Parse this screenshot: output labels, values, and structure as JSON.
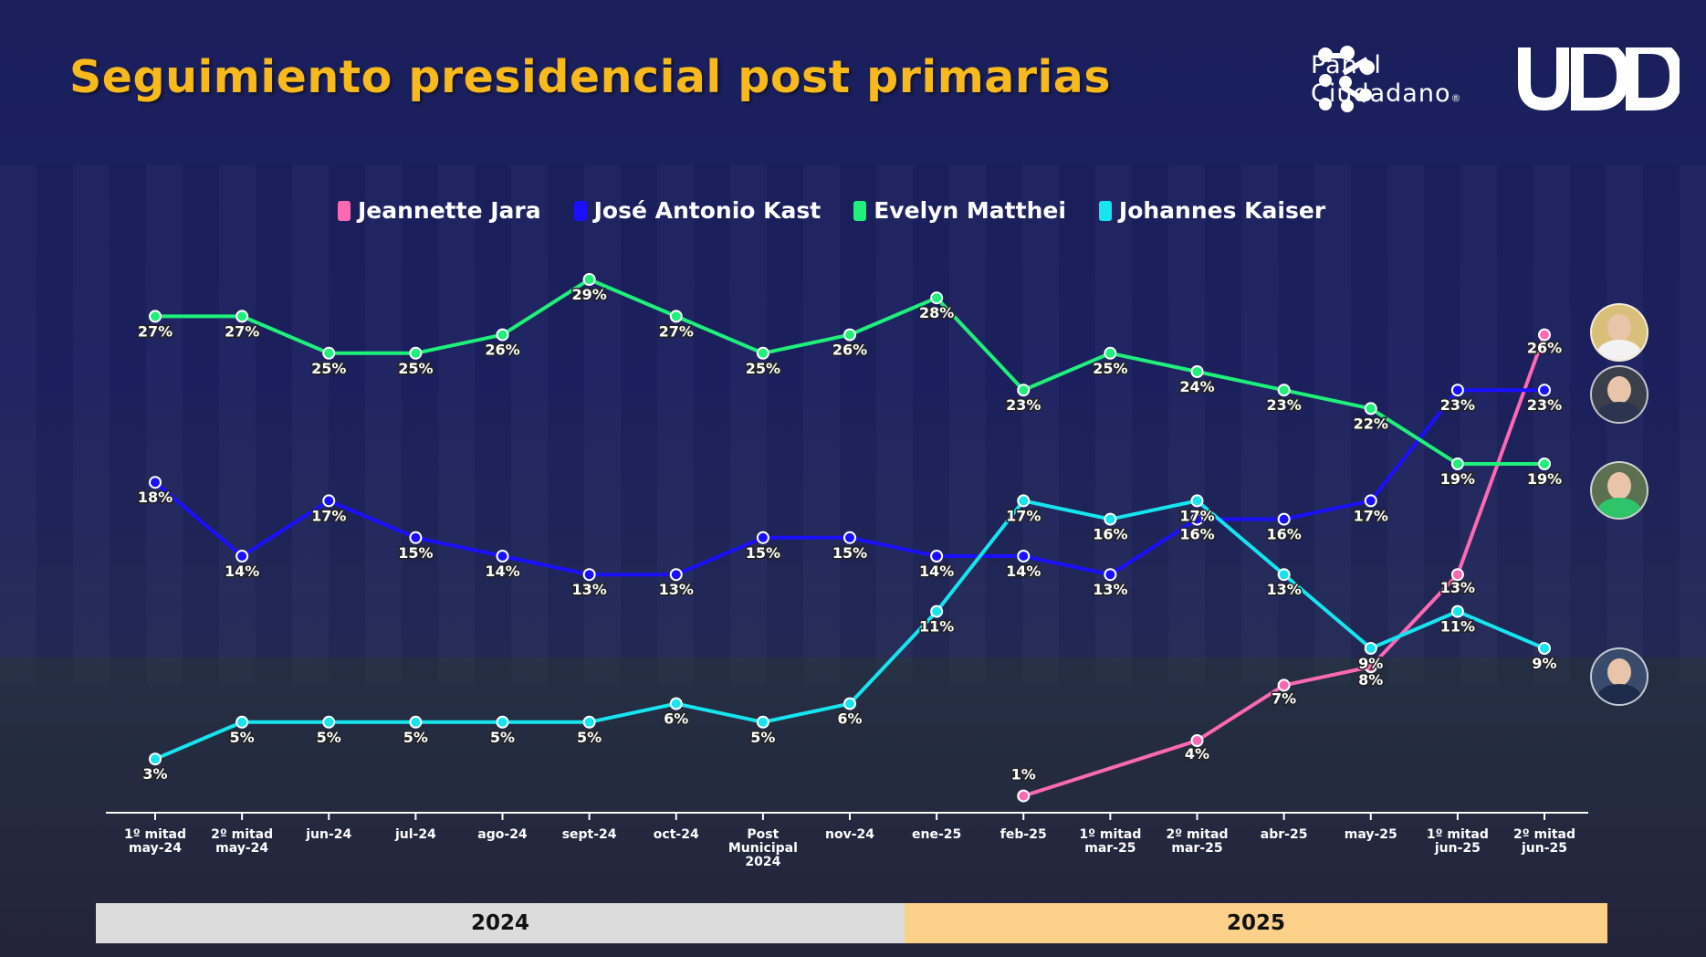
{
  "title": "Seguimiento presidencial post primarias",
  "logos": {
    "panel_line1": "Panel",
    "panel_line2": "Ciudadano",
    "panel_reg": "®",
    "udd": "UDD"
  },
  "colors": {
    "title": "#f7b91c",
    "jara": "#ff69b4",
    "kast": "#1a10ff",
    "matthei": "#1ef07a",
    "kaiser": "#16e5f0",
    "year_2024": "#dcdcdc",
    "year_2025": "#fbd089"
  },
  "years": {
    "y2024": "2024",
    "y2025": "2025"
  },
  "chart_data": {
    "type": "line",
    "categories": [
      [
        "1º mitad",
        "may-24"
      ],
      [
        "2º mitad",
        "may-24"
      ],
      [
        "jun-24"
      ],
      [
        "jul-24"
      ],
      [
        "ago-24"
      ],
      [
        "sept-24"
      ],
      [
        "oct-24"
      ],
      [
        "Post",
        "Municipal",
        "2024"
      ],
      [
        "nov-24"
      ],
      [
        "ene-25"
      ],
      [
        "feb-25"
      ],
      [
        "1º mitad",
        "mar-25"
      ],
      [
        "2º mitad",
        "mar-25"
      ],
      [
        "abr-25"
      ],
      [
        "may-25"
      ],
      [
        "1º mitad",
        "jun-25"
      ],
      [
        "2º mitad",
        "jun-25"
      ]
    ],
    "ylim": [
      0,
      32
    ],
    "grid": false,
    "legend_position": "top-center",
    "series": [
      {
        "name": "Jeannette Jara",
        "color": "#ff69b4",
        "values": [
          null,
          null,
          null,
          null,
          null,
          null,
          null,
          null,
          null,
          null,
          1,
          null,
          4,
          7,
          8,
          13,
          26
        ]
      },
      {
        "name": "José Antonio Kast",
        "color": "#1a10ff",
        "values": [
          18,
          14,
          17,
          15,
          14,
          13,
          13,
          15,
          15,
          14,
          14,
          13,
          16,
          16,
          17,
          23,
          23
        ]
      },
      {
        "name": "Evelyn Matthei",
        "color": "#1ef07a",
        "values": [
          27,
          27,
          25,
          25,
          26,
          29,
          27,
          25,
          26,
          28,
          23,
          25,
          24,
          23,
          22,
          19,
          19
        ]
      },
      {
        "name": "Johannes Kaiser",
        "color": "#16e5f0",
        "values": [
          3,
          5,
          5,
          5,
          5,
          5,
          6,
          5,
          6,
          11,
          17,
          16,
          17,
          13,
          9,
          11,
          9
        ]
      }
    ]
  }
}
